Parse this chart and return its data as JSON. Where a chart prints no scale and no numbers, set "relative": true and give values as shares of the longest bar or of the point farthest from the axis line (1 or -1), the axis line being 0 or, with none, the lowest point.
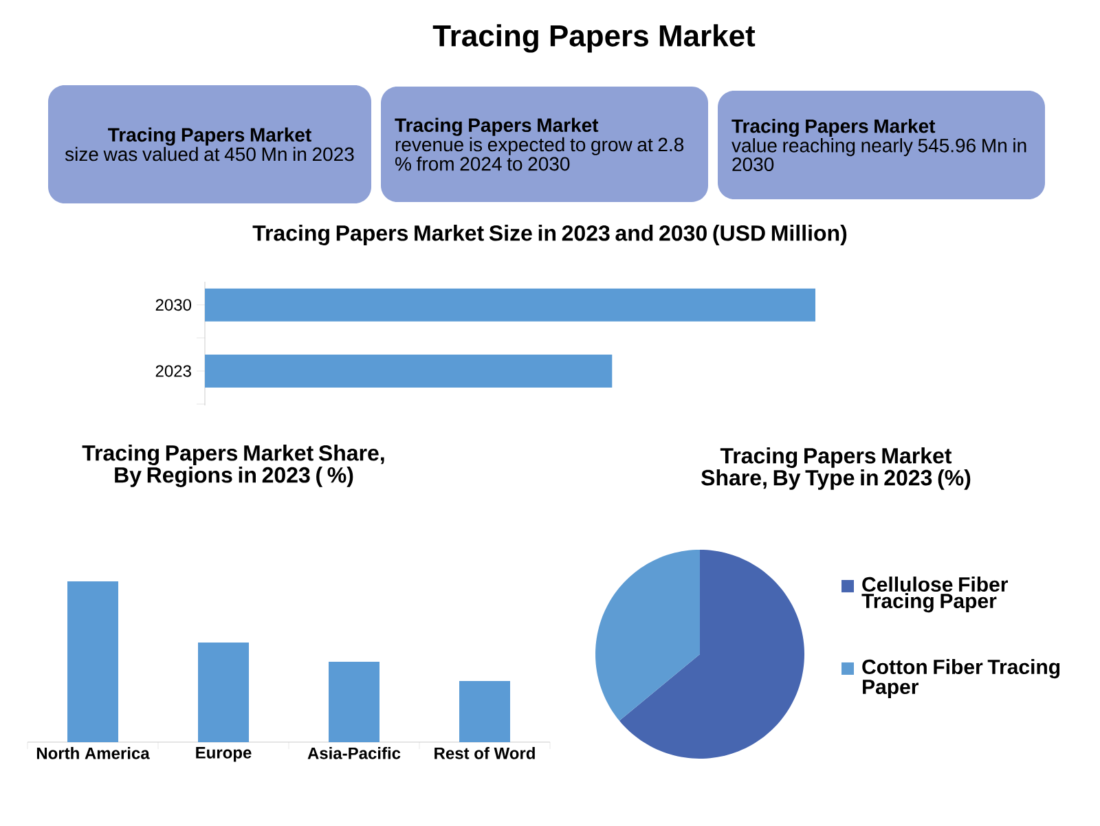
{
  "chart_data": [
    {
      "type": "other",
      "title": "Tracing Papers Market",
      "annotations": [
        "Tracing Papers Market",
        "size was valued at 450 Mn in 2023",
        "Tracing Papers Market",
        "revenue is expected to grow at 2.8 % from 2024 to 2030",
        "Tracing Papers Market",
        "value reaching nearly 545.96 Mn in 2030"
      ]
    },
    {
      "type": "bar",
      "orientation": "horizontal",
      "relative": true,
      "title": "Tracing Papers Market Size in 2023 and 2030 (USD Million)",
      "categories": [
        "2030",
        "2023"
      ],
      "values": [
        1,
        0.667
      ],
      "color": "#5b9bd5"
    },
    {
      "type": "bar",
      "relative": true,
      "title": "Tracing Papers Market Share, By Regions in 2023 ( %)",
      "categories": [
        "North America",
        "Europe",
        "Asia-Pacific",
        "Rest of Word"
      ],
      "values": [
        1,
        0.62,
        0.5,
        0.38
      ],
      "color": "#5b9bd5"
    },
    {
      "type": "pie",
      "title": "Tracing Papers Market Share, By Type in 2023 (%)",
      "categories": [
        "Cellulose Fiber Tracing Paper",
        "Cotton Fiber Tracing Paper"
      ],
      "values": [
        64,
        36
      ],
      "colors": [
        "#4766b0",
        "#5e9cd3"
      ],
      "legend": "right"
    }
  ]
}
